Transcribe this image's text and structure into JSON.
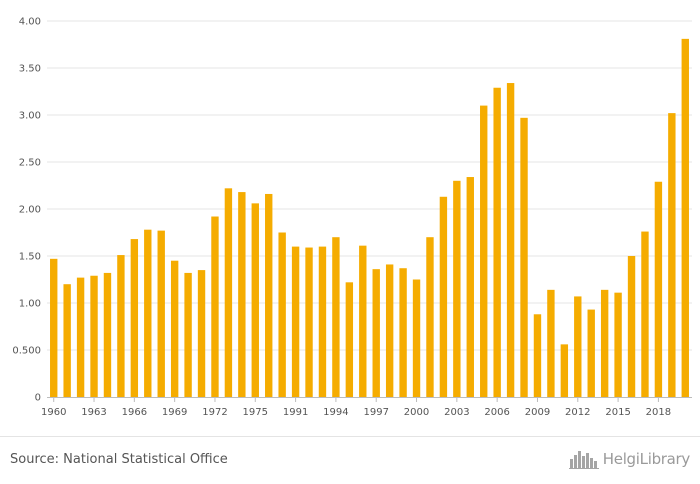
{
  "chart_data": {
    "type": "bar",
    "title": "",
    "xlabel": "",
    "ylabel": "",
    "ylim": [
      0,
      4.0
    ],
    "y_ticks": [
      "0",
      "0.500",
      "1.00",
      "1.50",
      "2.00",
      "2.50",
      "3.00",
      "3.50",
      "4.00"
    ],
    "x_tick_labels": [
      "1960",
      "1963",
      "1966",
      "1969",
      "1972",
      "1975",
      "1991",
      "1994",
      "1997",
      "2000",
      "2003",
      "2006",
      "2009",
      "2012",
      "2015",
      "2018"
    ],
    "bar_color": "#F5AC00",
    "grid": true,
    "categories": [
      "1960",
      "1961",
      "1962",
      "1963",
      "1964",
      "1965",
      "1966",
      "1967",
      "1968",
      "1969",
      "1970",
      "1971",
      "1972",
      "1973",
      "1974",
      "1975",
      "1976",
      "1990",
      "1991",
      "1992",
      "1993",
      "1994",
      "1995",
      "1996",
      "1997",
      "1998",
      "1999",
      "2000",
      "2001",
      "2002",
      "2003",
      "2004",
      "2005",
      "2006",
      "2007",
      "2008",
      "2009",
      "2010",
      "2011",
      "2012",
      "2013",
      "2014",
      "2015",
      "2016",
      "2017",
      "2018",
      "2019",
      "2020"
    ],
    "values": [
      1.47,
      1.2,
      1.27,
      1.29,
      1.32,
      1.51,
      1.68,
      1.78,
      1.77,
      1.45,
      1.32,
      1.35,
      1.92,
      2.22,
      2.18,
      2.06,
      2.16,
      1.75,
      1.6,
      1.59,
      1.6,
      1.7,
      1.22,
      1.61,
      1.36,
      1.41,
      1.37,
      1.25,
      1.7,
      2.13,
      2.3,
      2.34,
      3.1,
      3.29,
      3.34,
      2.97,
      0.88,
      1.14,
      0.56,
      1.07,
      0.93,
      1.14,
      1.11,
      1.5,
      1.76,
      2.29,
      3.02,
      3.81
    ]
  },
  "footer": {
    "source": "Source: National Statistical Office",
    "logo_text": "HelgiLibrary",
    "logo_icon": "city-skyline-icon"
  }
}
